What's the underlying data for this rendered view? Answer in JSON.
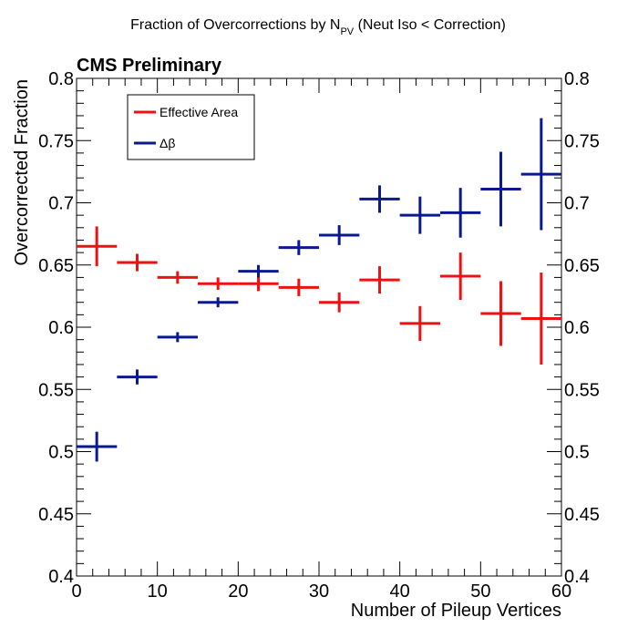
{
  "chart_data": {
    "type": "scatter",
    "title": "Fraction of Overcorrections by N",
    "title_subscript": "PV",
    "title_suffix": " (Neut Iso < Correction)",
    "corner_label": "CMS Preliminary",
    "xlabel": "Number of Pileup Vertices",
    "ylabel": "Overcorrected Fraction",
    "xlim": [
      0,
      60
    ],
    "ylim": [
      0.4,
      0.8
    ],
    "x_ticks": [
      0,
      10,
      20,
      30,
      40,
      50,
      60
    ],
    "y_ticks": [
      0.4,
      0.45,
      0.5,
      0.55,
      0.6,
      0.65,
      0.7,
      0.75,
      0.8
    ],
    "y_tick_labels": [
      "0.4",
      "0.45",
      "0.5",
      "0.55",
      "0.6",
      "0.65",
      "0.7",
      "0.75",
      "0.8"
    ],
    "x_tick_labels": [
      "0",
      "10",
      "20",
      "30",
      "40",
      "50",
      "60"
    ],
    "bin_half_width": 2.5,
    "grid": false,
    "legend_position": "top-left",
    "series": [
      {
        "name": "Effective Area",
        "color": "#ee1111",
        "x": [
          2.5,
          7.5,
          12.5,
          17.5,
          22.5,
          27.5,
          32.5,
          37.5,
          42.5,
          47.5,
          52.5,
          57.5
        ],
        "y": [
          0.665,
          0.652,
          0.64,
          0.635,
          0.635,
          0.632,
          0.62,
          0.638,
          0.603,
          0.641,
          0.611,
          0.607
        ],
        "err": [
          0.016,
          0.007,
          0.005,
          0.005,
          0.006,
          0.007,
          0.008,
          0.011,
          0.014,
          0.019,
          0.026,
          0.037
        ]
      },
      {
        "name": "Δβ",
        "color": "#0a1a8c",
        "x": [
          2.5,
          7.5,
          12.5,
          17.5,
          22.5,
          27.5,
          32.5,
          37.5,
          42.5,
          47.5,
          52.5,
          57.5
        ],
        "y": [
          0.504,
          0.56,
          0.592,
          0.62,
          0.645,
          0.664,
          0.674,
          0.703,
          0.69,
          0.692,
          0.711,
          0.723
        ],
        "err": [
          0.012,
          0.006,
          0.004,
          0.004,
          0.005,
          0.006,
          0.008,
          0.011,
          0.015,
          0.02,
          0.03,
          0.045
        ]
      }
    ]
  }
}
